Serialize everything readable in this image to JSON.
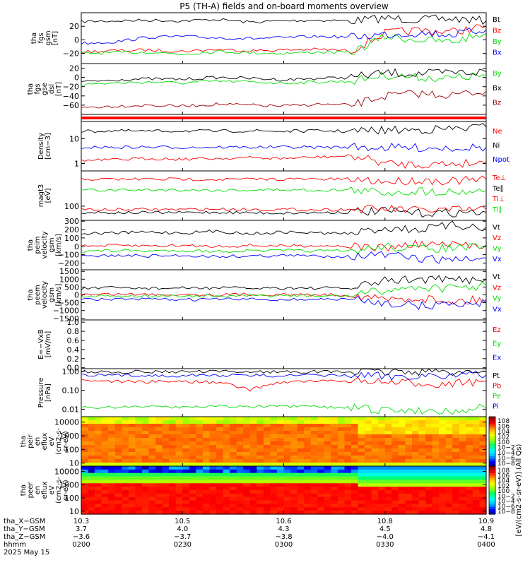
{
  "title": "P5 (TH-A) fields and on-board moments overview",
  "colors": {
    "black": "#000000",
    "red": "#ff0000",
    "blue": "#0000ff",
    "green": "#00e000",
    "darkred": "#a00000"
  },
  "panels": [
    {
      "id": "fgs-gsm",
      "ylabel": [
        "tha",
        "fgs",
        "gsm",
        "[nT]"
      ],
      "ticks": [
        "20",
        "0",
        "−20"
      ],
      "tick_values": [
        20,
        0,
        -20
      ],
      "ylim": [
        -35,
        40
      ],
      "legend": [
        {
          "text": "Bt",
          "color": "#000000"
        },
        {
          "text": "Bz",
          "color": "#ff0000"
        },
        {
          "text": "By",
          "color": "#00e000"
        },
        {
          "text": "Bx",
          "color": "#0000ff"
        }
      ]
    },
    {
      "id": "fgs-gse-dsl",
      "ylabel": [
        "tha",
        "fgs",
        "gse",
        "dsl",
        "[nT]"
      ],
      "ticks": [
        "20",
        "0",
        "−20",
        "−40",
        "−60"
      ],
      "tick_values": [
        20,
        0,
        -20,
        -40,
        -60
      ],
      "ylim": [
        -80,
        30
      ],
      "legend": [
        {
          "text": "By",
          "color": "#00e000"
        },
        {
          "text": "Bx",
          "color": "#000000"
        },
        {
          "text": "Bz",
          "color": "#a00000"
        }
      ]
    },
    {
      "id": "density",
      "ylabel": [
        "Density",
        "[cm−3]"
      ],
      "ticks": [
        "10",
        "1"
      ],
      "tick_values": [
        10,
        1
      ],
      "ylim": [
        0.5,
        50
      ],
      "log": true,
      "legend": [
        {
          "text": "Ne",
          "color": "#ff0000"
        },
        {
          "text": "Ni",
          "color": "#000000"
        },
        {
          "text": "Npot",
          "color": "#0000ff"
        }
      ]
    },
    {
      "id": "temperature",
      "ylabel": [
        "magt3",
        "[eV]"
      ],
      "ticks": [
        "100"
      ],
      "tick_values": [
        100
      ],
      "ylim": [
        30,
        2000
      ],
      "log": true,
      "legend": [
        {
          "text": "Te⊥",
          "color": "#ff0000"
        },
        {
          "text": "Te∥",
          "color": "#000000"
        },
        {
          "text": "Ti⊥",
          "color": "#ff0000"
        },
        {
          "text": "Ti∥",
          "color": "#00e000"
        }
      ]
    },
    {
      "id": "peim-velocity",
      "ylabel": [
        "tha",
        "peim",
        "velocity",
        "gsm",
        "[km/s]"
      ],
      "ticks": [
        "300",
        "200",
        "100",
        "0",
        "−100",
        "−200"
      ],
      "tick_values": [
        300,
        200,
        100,
        0,
        -100,
        -200
      ],
      "ylim": [
        -280,
        310
      ],
      "legend": [
        {
          "text": "Vt",
          "color": "#000000"
        },
        {
          "text": "Vz",
          "color": "#ff0000"
        },
        {
          "text": "Vy",
          "color": "#00e000"
        },
        {
          "text": "Vx",
          "color": "#0000ff"
        }
      ]
    },
    {
      "id": "peem-velocity",
      "ylabel": [
        "tha",
        "peem",
        "velocity",
        "gsm",
        "[km/s]"
      ],
      "ticks": [
        "1500",
        "1000",
        "500",
        "0",
        "−500",
        "−1000",
        "−1500"
      ],
      "tick_values": [
        1500,
        1000,
        500,
        0,
        -500,
        -1000,
        -1500
      ],
      "ylim": [
        -1600,
        1600
      ],
      "legend": [
        {
          "text": "Vt",
          "color": "#000000"
        },
        {
          "text": "Vz",
          "color": "#ff0000"
        },
        {
          "text": "Vy",
          "color": "#00e000"
        },
        {
          "text": "Vx",
          "color": "#0000ff"
        }
      ]
    },
    {
      "id": "efield",
      "ylabel": [
        "E=−VxB",
        "[mV/m]"
      ],
      "ticks": [
        "1.0",
        "0.8",
        "0.6",
        "0.4",
        "0.2",
        "0.0"
      ],
      "tick_values": [
        1.0,
        0.8,
        0.6,
        0.4,
        0.2,
        0.0
      ],
      "ylim": [
        -0.02,
        1.05
      ],
      "legend": [
        {
          "text": "Ez",
          "color": "#ff0000"
        },
        {
          "text": "Ey",
          "color": "#00e000"
        },
        {
          "text": "Ex",
          "color": "#0000ff"
        }
      ]
    },
    {
      "id": "pressure",
      "ylabel": [
        "Pressure",
        "[nPa]"
      ],
      "ticks": [
        "1.00",
        "0.10",
        "0.01"
      ],
      "tick_values": [
        1.0,
        0.1,
        0.01
      ],
      "ylim": [
        0.004,
        1.4
      ],
      "log": true,
      "legend": [
        {
          "text": "Pt",
          "color": "#000000"
        },
        {
          "text": "Pb",
          "color": "#ff0000"
        },
        {
          "text": "Pe",
          "color": "#00e000"
        },
        {
          "text": "Pi",
          "color": "#0000ff"
        }
      ]
    },
    {
      "id": "peir-spectrogram",
      "ylabel": [
        "tha",
        "peir",
        "en",
        "eflux",
        "eV",
        "(cm2-s-",
        "sr-eV)"
      ],
      "ticks": [
        "10000",
        "1000",
        "100",
        "10"
      ],
      "tick_values": [
        10000,
        1000,
        100,
        10
      ],
      "ylim": [
        6,
        25000
      ],
      "log": true,
      "colorbar_labels": [
        "108",
        "106",
        "104",
        "102",
        "100",
        "10−2",
        "10−4",
        "10−6",
        "10−8"
      ]
    },
    {
      "id": "peer-spectrogram",
      "ylabel": [
        "tha",
        "peer",
        "en",
        "eflux",
        "eV",
        "(cm2-s-",
        "sr-eV)"
      ],
      "ticks": [
        "10000",
        "1000",
        "100",
        "10"
      ],
      "tick_values": [
        10000,
        1000,
        100,
        10
      ],
      "ylim": [
        6,
        25000
      ],
      "log": true,
      "colorbar_labels": [
        "108",
        "106",
        "104",
        "102",
        "100",
        "10−2",
        "10−4",
        "10−6",
        "10−8"
      ]
    }
  ],
  "colorbar_title": "[eV/(cm2-s-sr-eV)] (All Qs)",
  "ephemeris": {
    "row_labels": [
      "tha_X−GSM",
      "tha_Y−GSM",
      "tha_Z−GSM",
      "hhmm",
      "2025 May 15"
    ],
    "columns": [
      {
        "x": "10.3",
        "y": "3.7",
        "z": "−3.6",
        "time": "0200"
      },
      {
        "x": "10.5",
        "y": "4.0",
        "z": "−3.7",
        "time": "0230"
      },
      {
        "x": "10.6",
        "y": "4.3",
        "z": "−3.8",
        "time": "0300"
      },
      {
        "x": "10.8",
        "y": "4.5",
        "z": "−4.0",
        "time": "0330"
      },
      {
        "x": "10.9",
        "y": "4.8",
        "z": "−4.1",
        "time": "0400"
      }
    ]
  },
  "chart_data": {
    "type": "line",
    "title": "P5 (TH-A) fields and on-board moments overview",
    "xlabel": "hhmm",
    "x_range": [
      "0200",
      "0400"
    ],
    "x_ticks": [
      "0200",
      "0230",
      "0300",
      "0330",
      "0400"
    ],
    "x": [
      "0200",
      "0210",
      "0220",
      "0230",
      "0240",
      "0250",
      "0300",
      "0310",
      "0320",
      "0330",
      "0340",
      "0350",
      "0400"
    ],
    "series": [
      {
        "name": "Bt",
        "panel": "fgs-gsm",
        "values": [
          27,
          28,
          29,
          28,
          30,
          26,
          28,
          29,
          28,
          32,
          30,
          31,
          28
        ]
      },
      {
        "name": "Bz",
        "panel": "fgs-gsm",
        "values": [
          -18,
          -16,
          -15,
          -17,
          -14,
          -16,
          -15,
          -14,
          -16,
          10,
          14,
          12,
          20
        ]
      },
      {
        "name": "By",
        "panel": "fgs-gsm",
        "values": [
          -20,
          -19,
          -18,
          -21,
          -17,
          -19,
          -20,
          -18,
          -19,
          5,
          0,
          -3,
          10
        ]
      },
      {
        "name": "Bx",
        "panel": "fgs-gsm",
        "values": [
          -5,
          -3,
          4,
          5,
          3,
          2,
          3,
          5,
          4,
          8,
          10,
          8,
          15
        ]
      },
      {
        "name": "By",
        "panel": "fgs-gse-dsl",
        "values": [
          -15,
          -12,
          -10,
          -12,
          -8,
          -10,
          -12,
          -10,
          -8,
          5,
          0,
          -2,
          5
        ]
      },
      {
        "name": "Bx",
        "panel": "fgs-gse-dsl",
        "values": [
          -10,
          -5,
          -3,
          -4,
          0,
          -2,
          -5,
          -2,
          0,
          10,
          8,
          10,
          12
        ]
      },
      {
        "name": "Bz",
        "panel": "fgs-gse-dsl",
        "values": [
          -65,
          -62,
          -60,
          -62,
          -58,
          -60,
          -62,
          -58,
          -60,
          -40,
          -35,
          -38,
          -30
        ]
      },
      {
        "name": "Ni",
        "panel": "density",
        "values": [
          20,
          21,
          20,
          21,
          20,
          21,
          20,
          21,
          20,
          22,
          23,
          25,
          30
        ]
      },
      {
        "name": "Npot",
        "panel": "density",
        "values": [
          4.5,
          4.5,
          4.6,
          4.5,
          4.6,
          4.5,
          4.6,
          4.5,
          4.6,
          4.4,
          4.3,
          4.4,
          4.5
        ]
      },
      {
        "name": "Ne",
        "panel": "density",
        "values": [
          1.3,
          1.4,
          1.6,
          1.5,
          1.6,
          1.7,
          1.6,
          1.8,
          2.0,
          1.0,
          0.9,
          1.0,
          1.1
        ]
      },
      {
        "name": "Te∥",
        "panel": "temperature",
        "values": [
          60,
          58,
          57,
          58,
          60,
          57,
          56,
          58,
          60,
          65,
          55,
          58,
          60
        ]
      },
      {
        "name": "Te⊥",
        "panel": "temperature",
        "values": [
          75,
          74,
          76,
          75,
          78,
          76,
          75,
          74,
          76,
          80,
          70,
          72,
          75
        ]
      },
      {
        "name": "Ti⊥",
        "panel": "temperature",
        "values": [
          1000,
          980,
          990,
          1000,
          970,
          990,
          1000,
          980,
          990,
          800,
          900,
          850,
          950
        ]
      },
      {
        "name": "Ti∥",
        "panel": "temperature",
        "values": [
          400,
          390,
          395,
          400,
          385,
          395,
          400,
          390,
          395,
          320,
          360,
          340,
          380
        ]
      },
      {
        "name": "Vt",
        "panel": "peim-velocity",
        "values": [
          150,
          160,
          170,
          160,
          180,
          150,
          170,
          160,
          150,
          220,
          200,
          250,
          230
        ]
      },
      {
        "name": "Vz",
        "panel": "peim-velocity",
        "values": [
          0,
          10,
          5,
          10,
          0,
          10,
          5,
          10,
          0,
          -20,
          30,
          10,
          20
        ]
      },
      {
        "name": "Vy",
        "panel": "peim-velocity",
        "values": [
          -60,
          -50,
          -55,
          -50,
          -60,
          -55,
          -50,
          -55,
          -60,
          0,
          -30,
          -20,
          -10
        ]
      },
      {
        "name": "Vx",
        "panel": "peim-velocity",
        "values": [
          -120,
          -110,
          -115,
          -110,
          -120,
          -115,
          -110,
          -115,
          -120,
          -100,
          -150,
          -160,
          -140
        ]
      },
      {
        "name": "Vt",
        "panel": "peem-velocity",
        "values": [
          400,
          450,
          420,
          430,
          450,
          420,
          440,
          430,
          420,
          900,
          1000,
          950,
          1000
        ]
      },
      {
        "name": "Vz",
        "panel": "peem-velocity",
        "values": [
          0,
          50,
          20,
          40,
          0,
          30,
          20,
          10,
          0,
          -300,
          -200,
          -400,
          -300
        ]
      },
      {
        "name": "Vy",
        "panel": "peem-velocity",
        "values": [
          -100,
          -50,
          -80,
          -60,
          -90,
          -70,
          -50,
          -80,
          -60,
          300,
          500,
          400,
          600
        ]
      },
      {
        "name": "Vx",
        "panel": "peem-velocity",
        "values": [
          -300,
          -280,
          -290,
          -300,
          -280,
          -290,
          -300,
          -280,
          -290,
          -500,
          -700,
          -600,
          -500
        ]
      },
      {
        "name": "Pt",
        "panel": "pressure",
        "values": [
          0.95,
          0.96,
          0.97,
          0.96,
          0.97,
          0.96,
          0.96,
          0.97,
          0.96,
          0.95,
          0.98,
          0.97,
          0.99
        ]
      },
      {
        "name": "Pb",
        "panel": "pressure",
        "values": [
          0.35,
          0.3,
          0.28,
          0.3,
          0.26,
          0.1,
          0.28,
          0.3,
          0.32,
          0.25,
          0.22,
          0.24,
          0.3
        ]
      },
      {
        "name": "Pi",
        "panel": "pressure",
        "values": [
          0.6,
          0.62,
          0.61,
          0.6,
          0.62,
          0.61,
          0.6,
          0.61,
          0.6,
          0.55,
          0.6,
          0.62,
          0.65
        ]
      },
      {
        "name": "Pe",
        "panel": "pressure",
        "values": [
          0.012,
          0.013,
          0.014,
          0.013,
          0.015,
          0.013,
          0.014,
          0.013,
          0.012,
          0.008,
          0.009,
          0.008,
          0.012
        ]
      }
    ]
  }
}
